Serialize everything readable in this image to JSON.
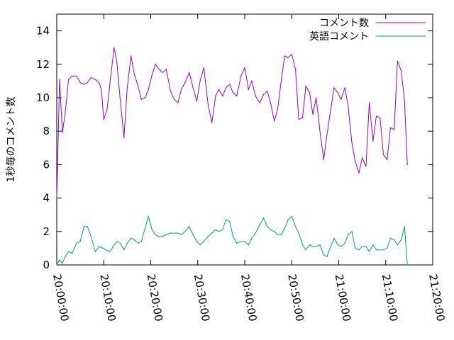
{
  "chart_data": {
    "type": "line",
    "ylabel": "1秒毎のコメント数",
    "ylim": [
      0,
      15
    ],
    "y_ticks": [
      0,
      2,
      4,
      6,
      8,
      10,
      12,
      14
    ],
    "x_range_minutes": [
      0,
      80
    ],
    "x_ticks": [
      {
        "minute": 0,
        "label": "20:00:00"
      },
      {
        "minute": 10,
        "label": "20:10:00"
      },
      {
        "minute": 20,
        "label": "20:20:00"
      },
      {
        "minute": 30,
        "label": "20:30:00"
      },
      {
        "minute": 40,
        "label": "20:40:00"
      },
      {
        "minute": 50,
        "label": "20:50:00"
      },
      {
        "minute": 60,
        "label": "21:00:00"
      },
      {
        "minute": 70,
        "label": "21:10:00"
      },
      {
        "minute": 80,
        "label": "21:20:00"
      }
    ],
    "legend_position": "top-right",
    "grid": false,
    "series": [
      {
        "name": "コメント数",
        "color": "#9400d3",
        "points": [
          [
            0.0,
            4.0
          ],
          [
            0.3,
            7.5
          ],
          [
            0.6,
            11.1
          ],
          [
            1.2,
            7.9
          ],
          [
            1.8,
            9.1
          ],
          [
            2.5,
            11.1
          ],
          [
            3.3,
            11.3
          ],
          [
            4.2,
            11.3
          ],
          [
            5.0,
            10.9
          ],
          [
            5.8,
            10.8
          ],
          [
            6.5,
            10.9
          ],
          [
            7.3,
            11.2
          ],
          [
            8.2,
            11.1
          ],
          [
            9.0,
            10.9
          ],
          [
            9.5,
            10.5
          ],
          [
            10.0,
            8.7
          ],
          [
            10.7,
            9.3
          ],
          [
            11.5,
            11.3
          ],
          [
            12.2,
            13.0
          ],
          [
            12.8,
            12.1
          ],
          [
            13.5,
            9.9
          ],
          [
            14.3,
            7.6
          ],
          [
            15.0,
            10.6
          ],
          [
            15.8,
            12.5
          ],
          [
            16.5,
            11.4
          ],
          [
            17.3,
            10.7
          ],
          [
            18.0,
            9.9
          ],
          [
            18.8,
            10.0
          ],
          [
            19.5,
            10.5
          ],
          [
            20.3,
            11.4
          ],
          [
            21.0,
            12.0
          ],
          [
            21.8,
            11.7
          ],
          [
            22.5,
            11.5
          ],
          [
            23.3,
            11.7
          ],
          [
            24.2,
            10.4
          ],
          [
            25.0,
            9.9
          ],
          [
            25.8,
            9.7
          ],
          [
            26.5,
            10.5
          ],
          [
            27.3,
            10.9
          ],
          [
            28.2,
            11.5
          ],
          [
            29.0,
            10.6
          ],
          [
            29.8,
            9.8
          ],
          [
            30.5,
            11.0
          ],
          [
            31.3,
            11.8
          ],
          [
            32.2,
            9.6
          ],
          [
            33.0,
            8.5
          ],
          [
            33.8,
            10.1
          ],
          [
            34.5,
            10.5
          ],
          [
            35.3,
            10.1
          ],
          [
            36.0,
            10.6
          ],
          [
            36.8,
            10.8
          ],
          [
            37.5,
            10.3
          ],
          [
            38.3,
            10.1
          ],
          [
            39.2,
            11.3
          ],
          [
            40.0,
            11.8
          ],
          [
            40.8,
            10.5
          ],
          [
            41.5,
            11.0
          ],
          [
            42.3,
            10.1
          ],
          [
            43.2,
            9.7
          ],
          [
            44.0,
            10.2
          ],
          [
            44.8,
            10.4
          ],
          [
            45.5,
            9.7
          ],
          [
            46.3,
            8.6
          ],
          [
            47.0,
            9.3
          ],
          [
            47.8,
            11.1
          ],
          [
            48.5,
            12.5
          ],
          [
            49.2,
            12.4
          ],
          [
            50.0,
            12.6
          ],
          [
            50.8,
            11.7
          ],
          [
            51.5,
            8.7
          ],
          [
            52.3,
            8.8
          ],
          [
            53.0,
            10.7
          ],
          [
            53.8,
            10.3
          ],
          [
            54.5,
            9.0
          ],
          [
            55.2,
            10.0
          ],
          [
            56.0,
            8.0
          ],
          [
            56.8,
            6.3
          ],
          [
            57.5,
            7.8
          ],
          [
            58.3,
            9.3
          ],
          [
            59.0,
            10.6
          ],
          [
            59.8,
            10.3
          ],
          [
            60.5,
            9.9
          ],
          [
            61.3,
            10.6
          ],
          [
            62.0,
            9.5
          ],
          [
            62.8,
            7.3
          ],
          [
            63.5,
            6.2
          ],
          [
            64.3,
            5.5
          ],
          [
            65.0,
            6.4
          ],
          [
            65.8,
            5.9
          ],
          [
            66.5,
            9.7
          ],
          [
            67.3,
            7.4
          ],
          [
            68.0,
            8.9
          ],
          [
            68.8,
            8.8
          ],
          [
            69.5,
            6.6
          ],
          [
            70.3,
            6.3
          ],
          [
            71.0,
            8.2
          ],
          [
            71.8,
            8.1
          ],
          [
            72.5,
            12.2
          ],
          [
            73.3,
            11.6
          ],
          [
            74.0,
            9.8
          ],
          [
            74.6,
            6.0
          ]
        ]
      },
      {
        "name": "英語コメント",
        "color": "#009e73",
        "points": [
          [
            0.0,
            0.0
          ],
          [
            0.6,
            0.3
          ],
          [
            1.2,
            0.1
          ],
          [
            1.8,
            0.5
          ],
          [
            2.5,
            0.8
          ],
          [
            3.3,
            0.7
          ],
          [
            4.2,
            1.3
          ],
          [
            5.0,
            1.4
          ],
          [
            5.8,
            2.3
          ],
          [
            6.5,
            2.3
          ],
          [
            7.3,
            1.7
          ],
          [
            8.2,
            0.8
          ],
          [
            9.0,
            1.1
          ],
          [
            9.8,
            1.0
          ],
          [
            10.5,
            0.9
          ],
          [
            11.3,
            0.8
          ],
          [
            12.0,
            1.1
          ],
          [
            12.8,
            1.4
          ],
          [
            13.5,
            1.3
          ],
          [
            14.3,
            0.9
          ],
          [
            15.0,
            1.3
          ],
          [
            15.8,
            1.6
          ],
          [
            16.5,
            1.5
          ],
          [
            17.3,
            1.3
          ],
          [
            18.0,
            1.4
          ],
          [
            18.8,
            2.2
          ],
          [
            19.5,
            2.9
          ],
          [
            20.3,
            2.1
          ],
          [
            21.0,
            1.8
          ],
          [
            21.8,
            1.7
          ],
          [
            22.5,
            1.7
          ],
          [
            23.3,
            1.8
          ],
          [
            24.2,
            1.9
          ],
          [
            25.0,
            1.9
          ],
          [
            25.8,
            1.9
          ],
          [
            26.5,
            1.8
          ],
          [
            27.3,
            2.0
          ],
          [
            28.2,
            2.3
          ],
          [
            29.0,
            1.8
          ],
          [
            29.8,
            1.4
          ],
          [
            30.5,
            1.2
          ],
          [
            31.3,
            1.4
          ],
          [
            32.2,
            1.7
          ],
          [
            33.0,
            1.9
          ],
          [
            33.8,
            2.1
          ],
          [
            34.5,
            2.0
          ],
          [
            35.3,
            2.1
          ],
          [
            36.0,
            2.7
          ],
          [
            36.8,
            2.6
          ],
          [
            37.5,
            1.7
          ],
          [
            38.3,
            1.3
          ],
          [
            39.2,
            1.4
          ],
          [
            40.0,
            1.4
          ],
          [
            40.8,
            1.2
          ],
          [
            41.5,
            1.6
          ],
          [
            42.3,
            1.9
          ],
          [
            43.2,
            2.4
          ],
          [
            44.0,
            2.8
          ],
          [
            44.8,
            2.3
          ],
          [
            45.5,
            2.1
          ],
          [
            46.3,
            2.0
          ],
          [
            47.0,
            1.8
          ],
          [
            47.8,
            1.8
          ],
          [
            48.5,
            2.2
          ],
          [
            49.2,
            2.7
          ],
          [
            50.0,
            2.9
          ],
          [
            50.8,
            2.3
          ],
          [
            51.5,
            1.9
          ],
          [
            52.3,
            1.2
          ],
          [
            53.0,
            0.9
          ],
          [
            53.8,
            1.2
          ],
          [
            54.5,
            1.1
          ],
          [
            55.2,
            1.1
          ],
          [
            56.0,
            1.2
          ],
          [
            56.8,
            0.6
          ],
          [
            57.5,
            0.5
          ],
          [
            58.3,
            1.1
          ],
          [
            59.0,
            1.6
          ],
          [
            59.8,
            1.2
          ],
          [
            60.5,
            1.1
          ],
          [
            61.3,
            1.3
          ],
          [
            62.0,
            1.8
          ],
          [
            62.8,
            2.0
          ],
          [
            63.5,
            1.0
          ],
          [
            64.3,
            0.9
          ],
          [
            65.0,
            1.1
          ],
          [
            65.8,
            1.1
          ],
          [
            66.5,
            0.8
          ],
          [
            67.3,
            1.2
          ],
          [
            68.0,
            0.9
          ],
          [
            68.8,
            0.9
          ],
          [
            69.5,
            0.9
          ],
          [
            70.3,
            1.0
          ],
          [
            71.0,
            1.6
          ],
          [
            71.8,
            1.5
          ],
          [
            72.5,
            1.2
          ],
          [
            73.3,
            1.5
          ],
          [
            74.0,
            2.3
          ],
          [
            74.6,
            0.0
          ]
        ]
      }
    ]
  }
}
